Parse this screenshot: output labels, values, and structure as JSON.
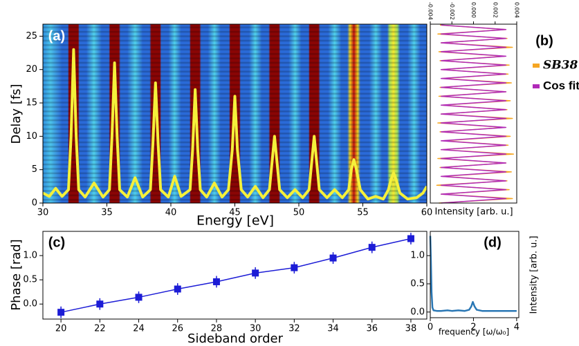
{
  "chart_data": [
    {
      "type": "line",
      "panel_label": "(a)",
      "xlabel": "Energy [eV]",
      "ylabel": "Delay [fs]",
      "xlim": [
        30,
        60
      ],
      "ylim": [
        0,
        26.8
      ],
      "xticks": [
        30,
        35,
        40,
        45,
        50,
        55,
        60
      ],
      "yticks": [
        0,
        5,
        10,
        15,
        20,
        25
      ],
      "x": [
        30,
        30.5,
        31,
        31.5,
        32,
        32.2,
        32.4,
        32.6,
        32.8,
        33.3,
        34,
        34.7,
        35.2,
        35.4,
        35.6,
        35.8,
        36,
        36.6,
        37.2,
        37.8,
        38.4,
        38.6,
        38.8,
        39,
        39.2,
        39.8,
        40.3,
        40.8,
        41.5,
        41.7,
        41.9,
        42.1,
        42.3,
        42.8,
        43.4,
        44,
        44.5,
        44.8,
        45,
        45.2,
        45.5,
        46,
        46.6,
        47.2,
        47.7,
        47.9,
        48.1,
        48.3,
        48.5,
        49.1,
        49.7,
        50.3,
        50.8,
        51,
        51.2,
        51.4,
        51.6,
        52.2,
        52.8,
        53.4,
        53.9,
        54.1,
        54.3,
        54.5,
        54.8,
        55.4,
        56,
        56.6,
        57,
        57.2,
        57.4,
        57.6,
        57.9,
        58.5,
        59.2,
        59.7,
        60
      ],
      "series": [
        {
          "color": "#f5f03a",
          "values": [
            1.5,
            1.0,
            2.2,
            1.0,
            2,
            10,
            23,
            10,
            2,
            0.9,
            3,
            0.9,
            2,
            10,
            21,
            10,
            2,
            0.9,
            3.8,
            0.9,
            2,
            9,
            18,
            9,
            2,
            0.9,
            4,
            1,
            2,
            8,
            17,
            8,
            2,
            0.9,
            3,
            0.9,
            2,
            8,
            16,
            8,
            2,
            0.9,
            2.5,
            0.8,
            2,
            6,
            10,
            6,
            2,
            0.8,
            2,
            0.8,
            2,
            6,
            10,
            6,
            2,
            0.8,
            2,
            0.8,
            2,
            5,
            6.5,
            5,
            2,
            0.6,
            1,
            0.6,
            2,
            3.5,
            4.5,
            3.5,
            1.5,
            0.6,
            0.8,
            1.5,
            2.5
          ]
        }
      ]
    },
    {
      "type": "line",
      "panel_label": "(b)",
      "xlabel": "Intensity [arb. u.]",
      "xlim": [
        -0.004,
        0.004
      ],
      "ylim": [
        0,
        26.8
      ],
      "xticks": [
        -0.004,
        -0.002,
        {
          "value": 0,
          "label": "0.000"
        },
        0.002,
        0.004
      ],
      "y": [
        0,
        0.67,
        1.33,
        2,
        2.67,
        3.33,
        4,
        4.67,
        5.33,
        6,
        6.67,
        7.33,
        8,
        8.67,
        9.33,
        10,
        10.67,
        11.33,
        12,
        12.67,
        13.33,
        14,
        14.67,
        15.33,
        16,
        16.67,
        17.33,
        18,
        18.67,
        19.33,
        20,
        20.67,
        21.33,
        22,
        22.67,
        23.33,
        24,
        24.67,
        25.33,
        26,
        26.67
      ],
      "series": [
        {
          "name": "SB38",
          "color": "#f5a623",
          "values": [
            -0.0032,
            0.0036,
            -0.003,
            0.0033,
            -0.0034,
            0.0031,
            -0.0029,
            0.0035,
            -0.0031,
            0.003,
            -0.0033,
            0.0037,
            -0.003,
            0.0032,
            -0.0028,
            0.0034,
            -0.0031,
            0.0029,
            -0.0033,
            0.0036,
            -0.003,
            0.0031,
            -0.0029,
            0.0034,
            -0.0032,
            0.003,
            -0.0031,
            0.0035,
            -0.0029,
            0.0032,
            -0.003,
            0.0033,
            -0.0031,
            0.0029,
            -0.0032,
            0.0036,
            -0.003,
            0.0031,
            -0.0033,
            0.003,
            -0.0031
          ]
        },
        {
          "name": "Cos fit",
          "color": "#b02ab8",
          "values": [
            -0.003,
            0.003,
            -0.003,
            0.003,
            -0.003,
            0.003,
            -0.003,
            0.003,
            -0.003,
            0.003,
            -0.003,
            0.003,
            -0.003,
            0.003,
            -0.003,
            0.003,
            -0.003,
            0.003,
            -0.003,
            0.003,
            -0.003,
            0.003,
            -0.003,
            0.003,
            -0.003,
            0.003,
            -0.003,
            0.003,
            -0.003,
            0.003,
            -0.003,
            0.003,
            -0.003,
            0.003,
            -0.003,
            0.003,
            -0.003,
            0.003,
            -0.003,
            0.003,
            -0.003
          ]
        }
      ]
    },
    {
      "type": "line",
      "panel_label": "(c)",
      "xlabel": "Sideband order",
      "ylabel": "Phase [rad]",
      "xlim": [
        19.07,
        38.82
      ],
      "ylim": [
        -0.31,
        1.5
      ],
      "xticks": [
        20,
        22,
        24,
        26,
        28,
        30,
        32,
        34,
        36,
        38
      ],
      "yticks": [
        {
          "value": 0,
          "label": "0.0"
        },
        {
          "value": 0.5,
          "label": "0.5"
        },
        {
          "value": 1,
          "label": "1.0"
        }
      ],
      "x": [
        20,
        22,
        24,
        26,
        28,
        30,
        32,
        34,
        36,
        38
      ],
      "series": [
        {
          "color": "#1c1cd6",
          "marker": "square",
          "values": [
            -0.17,
            0.0,
            0.14,
            0.31,
            0.46,
            0.64,
            0.75,
            0.95,
            1.17,
            1.35
          ],
          "errors": [
            0.12,
            0.12,
            0.12,
            0.12,
            0.12,
            0.12,
            0.12,
            0.12,
            0.12,
            0.12
          ]
        }
      ]
    },
    {
      "type": "line",
      "panel_label": "(d)",
      "xlabel": "frequency [ω/ω₀]",
      "ylabel": "Intensity [arb. u.]",
      "xlim": [
        0,
        4.1
      ],
      "ylim": [
        -0.1,
        1.43
      ],
      "xticks": [
        0,
        2,
        4
      ],
      "yticks": [
        {
          "value": 0,
          "label": "0.0"
        },
        {
          "value": 0.5,
          "label": "0.5"
        },
        {
          "value": 1,
          "label": "1.0"
        }
      ],
      "x": [
        0,
        0.03,
        0.06,
        0.1,
        0.15,
        0.3,
        0.5,
        0.8,
        1.0,
        1.3,
        1.6,
        1.8,
        1.9,
        1.97,
        2.05,
        2.15,
        2.4,
        2.8,
        3.2,
        3.6,
        4.0
      ],
      "series": [
        {
          "color": "#2a77b4",
          "values": [
            1.35,
            0.9,
            0.35,
            0.08,
            0.03,
            0.02,
            0.02,
            0.03,
            0.02,
            0.03,
            0.02,
            0.04,
            0.1,
            0.18,
            0.1,
            0.04,
            0.02,
            0.02,
            0.02,
            0.02,
            0.02
          ]
        }
      ]
    }
  ]
}
